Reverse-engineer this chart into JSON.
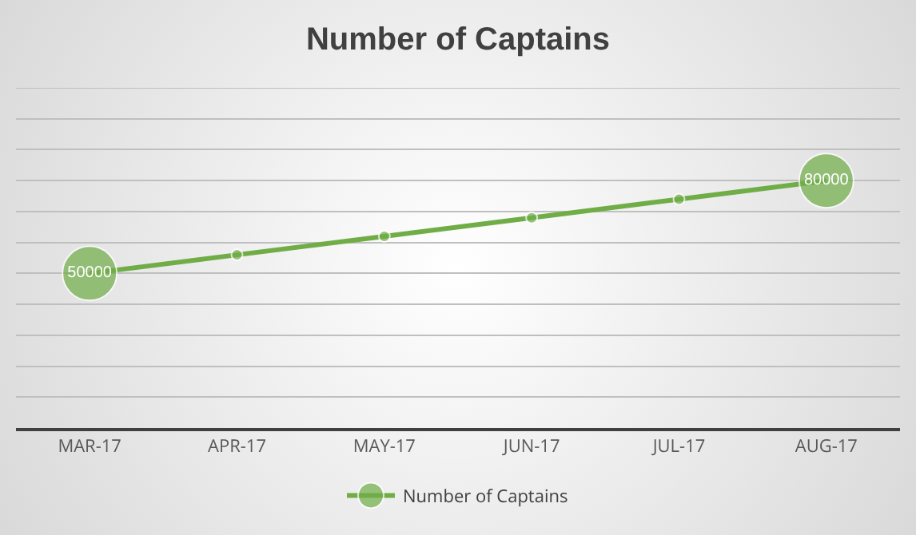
{
  "chart_data": {
    "type": "line",
    "title": "Number of Captains",
    "categories": [
      "MAR-17",
      "APR-17",
      "MAY-17",
      "JUN-17",
      "JUL-17",
      "AUG-17"
    ],
    "series": [
      {
        "name": "Number of Captains",
        "color": "#70ad47",
        "values": [
          50000,
          56000,
          62000,
          68000,
          74000,
          80000
        ],
        "value_labels": [
          "50000",
          null,
          null,
          null,
          null,
          "80000"
        ]
      }
    ],
    "ylim": [
      0,
      110000
    ],
    "yticks": [
      {
        "value": 0,
        "label": null
      },
      {
        "value": 10000,
        "label": null
      },
      {
        "value": 20000,
        "label": null
      },
      {
        "value": 30000,
        "label": null
      },
      {
        "value": 40000,
        "label": null
      },
      {
        "value": 50000,
        "label": null
      },
      {
        "value": 60000,
        "label": null
      },
      {
        "value": 70000,
        "label": null
      },
      {
        "value": 80000,
        "label": null
      },
      {
        "value": 90000,
        "label": null
      },
      {
        "value": 100000,
        "label": null
      },
      {
        "value": 110000,
        "label": null
      }
    ],
    "tick_labels": "x",
    "grid": "y",
    "legend": "bottom",
    "marker": "circle",
    "line_style": "solid"
  }
}
